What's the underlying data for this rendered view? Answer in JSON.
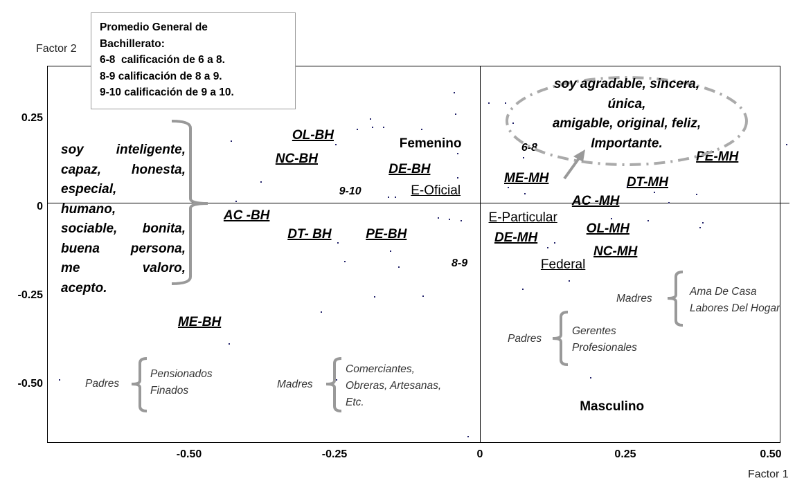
{
  "chart_data": {
    "type": "scatter",
    "title": "",
    "xlabel": "Factor 1",
    "ylabel": "Factor 2",
    "xlim": [
      -0.744,
      0.517
    ],
    "ylim": [
      -0.664,
      0.4
    ],
    "grid": false,
    "x_ticks": [
      "-0.50",
      "-0.25",
      "0",
      "0.25",
      "0.50"
    ],
    "x_tick_values": [
      -0.5,
      -0.25,
      0,
      0.25,
      0.5
    ],
    "y_ticks": [
      "0.25",
      "0",
      "-0.25",
      "-0.50"
    ],
    "y_tick_values": [
      0.25,
      0,
      -0.25,
      -0.5
    ],
    "labeled_points": [
      {
        "label": "OL-BH",
        "x": -0.287,
        "y": 0.203,
        "kind": "cat"
      },
      {
        "label": "NC-BH",
        "x": -0.315,
        "y": 0.137,
        "kind": "cat"
      },
      {
        "label": "Femenino",
        "x": -0.085,
        "y": 0.18,
        "kind": "sex"
      },
      {
        "label": "DE-BH",
        "x": -0.121,
        "y": 0.107,
        "kind": "cat"
      },
      {
        "label": "9-10",
        "x": -0.223,
        "y": 0.045,
        "kind": "grade"
      },
      {
        "label": "E-Oficial",
        "x": -0.076,
        "y": 0.047,
        "kind": "sch"
      },
      {
        "label": "AC -BH",
        "x": -0.401,
        "y": -0.023,
        "kind": "cat"
      },
      {
        "label": "DT- BH",
        "x": -0.293,
        "y": -0.076,
        "kind": "cat"
      },
      {
        "label": "PE-BH",
        "x": -0.161,
        "y": -0.076,
        "kind": "cat"
      },
      {
        "label": "8-9",
        "x": -0.035,
        "y": -0.158,
        "kind": "grade"
      },
      {
        "label": "ME-BH",
        "x": -0.482,
        "y": -0.324,
        "kind": "cat"
      },
      {
        "label": "6-8",
        "x": 0.085,
        "y": 0.168,
        "kind": "grade"
      },
      {
        "label": "ME-MH",
        "x": 0.08,
        "y": 0.082,
        "kind": "cat"
      },
      {
        "label": "PE-MH",
        "x": 0.408,
        "y": 0.143,
        "kind": "cat"
      },
      {
        "label": "DT-MH",
        "x": 0.288,
        "y": 0.07,
        "kind": "cat"
      },
      {
        "label": "AC -MH",
        "x": 0.199,
        "y": 0.018,
        "kind": "cat"
      },
      {
        "label": "E-Particular",
        "x": 0.074,
        "y": -0.029,
        "kind": "sch"
      },
      {
        "label": "OL-MH",
        "x": 0.22,
        "y": -0.061,
        "kind": "cat"
      },
      {
        "label": "DE-MH",
        "x": 0.062,
        "y": -0.086,
        "kind": "cat"
      },
      {
        "label": "NC-MH",
        "x": 0.233,
        "y": -0.125,
        "kind": "cat"
      },
      {
        "label": "Federal",
        "x": 0.143,
        "y": -0.162,
        "kind": "sch"
      },
      {
        "label": "Masculino",
        "x": 0.227,
        "y": -0.5625,
        "kind": "sex"
      }
    ],
    "points": [
      [
        -0.045,
        0.326
      ],
      [
        -0.189,
        0.252
      ],
      [
        -0.212,
        0.223
      ],
      [
        -0.186,
        0.229
      ],
      [
        -0.167,
        0.229
      ],
      [
        -0.101,
        0.223
      ],
      [
        -0.249,
        0.18
      ],
      [
        -0.429,
        0.189
      ],
      [
        -0.377,
        0.074
      ],
      [
        -0.043,
        0.266
      ],
      [
        -0.039,
        0.154
      ],
      [
        -0.039,
        0.086
      ],
      [
        -0.077,
        0.059
      ],
      [
        -0.146,
        0.031
      ],
      [
        -0.158,
        0.031
      ],
      [
        -0.42,
        0.02
      ],
      [
        -0.073,
        -0.027
      ],
      [
        -0.054,
        -0.031
      ],
      [
        -0.033,
        -0.035
      ],
      [
        -0.155,
        -0.121
      ],
      [
        -0.14,
        -0.166
      ],
      [
        -0.233,
        -0.15
      ],
      [
        -0.245,
        -0.098
      ],
      [
        -0.182,
        -0.25
      ],
      [
        -0.099,
        -0.248
      ],
      [
        -0.274,
        -0.293
      ],
      [
        -0.432,
        -0.383
      ],
      [
        -0.724,
        -0.484
      ],
      [
        -0.248,
        -0.484
      ],
      [
        -0.021,
        -0.645
      ],
      [
        0.014,
        0.297
      ],
      [
        0.043,
        0.297
      ],
      [
        0.056,
        0.24
      ],
      [
        0.095,
        0.182
      ],
      [
        0.074,
        0.143
      ],
      [
        0.076,
        0.041
      ],
      [
        0.048,
        0.059
      ],
      [
        0.252,
        0.061
      ],
      [
        0.299,
        0.045
      ],
      [
        0.324,
        0.016
      ],
      [
        0.371,
        0.039
      ],
      [
        0.288,
        -0.035
      ],
      [
        0.382,
        -0.041
      ],
      [
        0.377,
        -0.055
      ],
      [
        0.127,
        -0.098
      ],
      [
        0.115,
        -0.111
      ],
      [
        0.152,
        -0.205
      ],
      [
        0.073,
        -0.229
      ],
      [
        0.189,
        -0.479
      ],
      [
        0.526,
        0.18
      ],
      [
        0.225,
        -0.029
      ]
    ]
  },
  "legend": {
    "lines": [
      "Promedio General de",
      "Bachillerato:",
      "6-8  calificación de 6 a 8.",
      "8-9 calificación de 8 a 9.",
      "9-10 calificación de 9 a 10."
    ]
  },
  "left_annotation": {
    "lines": [
      "soy inteligente,",
      "capaz, honesta,",
      "especial,",
      "humano,",
      "sociable, bonita,",
      "buena persona,",
      "me valoro,",
      "acepto."
    ]
  },
  "ellipse_annotation": {
    "lines": [
      "soy agradable, sincera,",
      "única,",
      "amigable, original, feliz,",
      "Importante."
    ]
  },
  "occupations": [
    {
      "group": "Padres",
      "items": [
        "Pensionados",
        "Finados"
      ]
    },
    {
      "group": "Madres",
      "items": [
        "Comerciantes,",
        "Obreras, Artesanas,",
        "Etc."
      ]
    },
    {
      "group": "Padres",
      "items": [
        "Gerentes",
        "Profesionales"
      ]
    },
    {
      "group": "Madres",
      "items": [
        "Ama De Casa",
        "Labores Del Hogar"
      ]
    }
  ],
  "colors": {
    "axis": "#000000",
    "point": "#22226a",
    "annotation": "#999999"
  }
}
